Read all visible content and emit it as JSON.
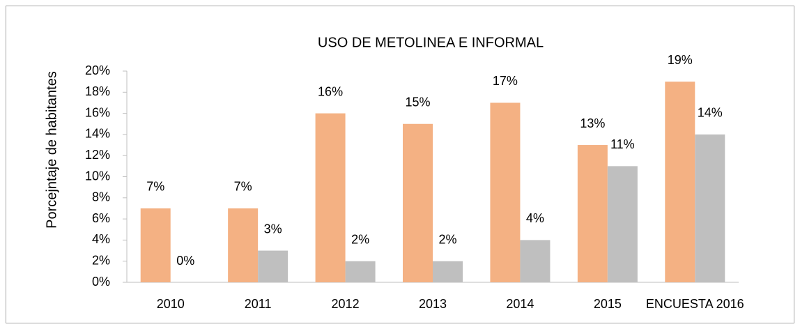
{
  "chart_data": {
    "type": "bar",
    "title": "USO  DE METOLINEA E INFORMAL",
    "y_label": "Porcejntaje de habitantes",
    "categories": [
      "2010",
      "2011",
      "2012",
      "2013",
      "2014",
      "2015",
      "ENCUESTA 2016"
    ],
    "series": [
      {
        "color": "#F4B183",
        "values": [
          7,
          7,
          16,
          15,
          17,
          13,
          19
        ],
        "value_labels": [
          "7%",
          "7%",
          "16%",
          "15%",
          "17%",
          "13%",
          "19%"
        ]
      },
      {
        "color": "#BFBFBF",
        "values": [
          0,
          3,
          2,
          2,
          4,
          11,
          14
        ],
        "value_labels": [
          "0%",
          "3%",
          "2%",
          "2%",
          "4%",
          "11%",
          "14%"
        ]
      }
    ],
    "ylim": [
      0,
      20
    ],
    "yticks": [
      {
        "value": 0,
        "label": "0%"
      },
      {
        "value": 2,
        "label": "2%"
      },
      {
        "value": 4,
        "label": "4%"
      },
      {
        "value": 6,
        "label": "6%"
      },
      {
        "value": 8,
        "label": "8%"
      },
      {
        "value": 10,
        "label": "10%"
      },
      {
        "value": 12,
        "label": "12%"
      },
      {
        "value": 14,
        "label": "14%"
      },
      {
        "value": 16,
        "label": "16%"
      },
      {
        "value": 18,
        "label": "18%"
      },
      {
        "value": 20,
        "label": "20%"
      }
    ],
    "grid": false
  }
}
